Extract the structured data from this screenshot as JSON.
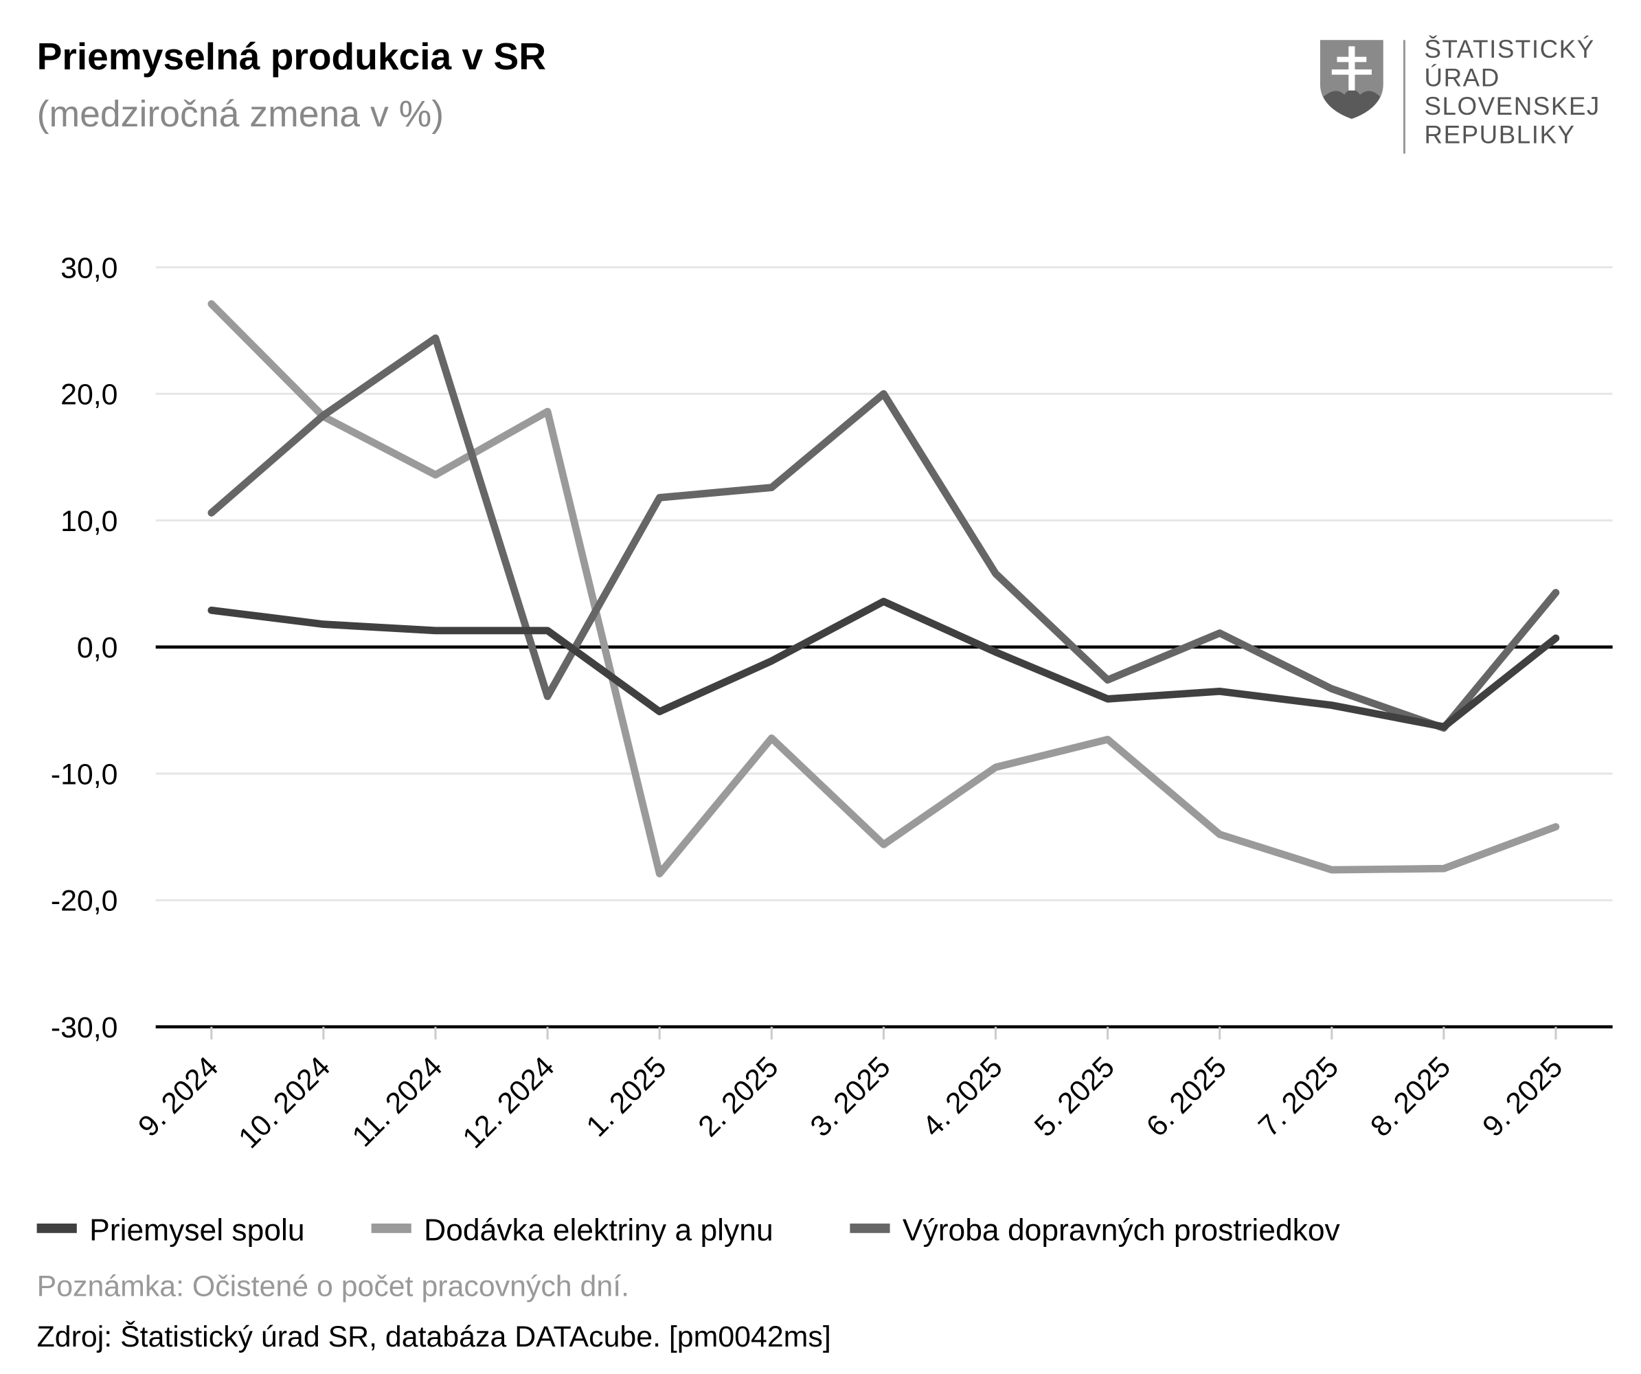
{
  "chart_data": {
    "type": "line",
    "title": "Priemyselná produkcia v SR",
    "subtitle": "(medziročná zmena v %)",
    "categories": [
      "9. 2024",
      "10. 2024",
      "11. 2024",
      "12. 2024",
      "1. 2025",
      "2. 2025",
      "3. 2025",
      "4. 2025",
      "5. 2025",
      "6. 2025",
      "7. 2025",
      "8. 2025",
      "9. 2025"
    ],
    "ylim": [
      -30,
      30
    ],
    "yticks": [
      30,
      20,
      10,
      0,
      -10,
      -20,
      -30
    ],
    "ytick_labels": [
      "30,0",
      "20,0",
      "10,0",
      "0,0",
      "-10,0",
      "-20,0",
      "-30,0"
    ],
    "grid": true,
    "legend_position": "bottom",
    "series": [
      {
        "name": "Priemysel spolu",
        "color": "#404040",
        "values": [
          2.9,
          1.8,
          1.3,
          1.3,
          -5.1,
          -1.1,
          3.6,
          -0.4,
          -4.1,
          -3.5,
          -4.6,
          -6.3,
          0.7
        ]
      },
      {
        "name": "Dodávka elektriny a plynu",
        "color": "#9a9a9a",
        "values": [
          27.1,
          18.2,
          13.6,
          18.6,
          -17.9,
          -7.2,
          -15.6,
          -9.5,
          -7.3,
          -14.8,
          -17.6,
          -17.5,
          -14.2
        ]
      },
      {
        "name": "Výroba dopravných prostriedkov",
        "color": "#666666",
        "values": [
          10.6,
          18.3,
          24.4,
          -3.9,
          11.8,
          12.6,
          20.0,
          5.8,
          -2.6,
          1.1,
          -3.3,
          -6.4,
          4.3
        ]
      }
    ]
  },
  "logo": {
    "lines": [
      "ŠTATISTICKÝ",
      "ÚRAD",
      "SLOVENSKEJ",
      "REPUBLIKY"
    ]
  },
  "note": "Poznámka: Očistené o počet pracovných dní.",
  "source": "Zdroj: Štatistický úrad SR, databáza DATAcube. [pm0042ms]"
}
